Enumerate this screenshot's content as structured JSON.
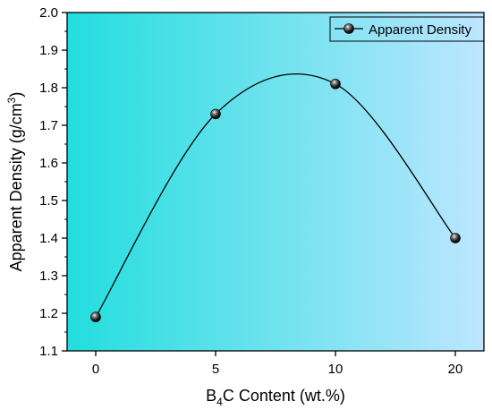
{
  "chart_data": {
    "type": "line",
    "title": "",
    "xlabel": {
      "main": "B",
      "sub": "4",
      "rest": "C Content (wt.%)"
    },
    "ylabel": {
      "main": "Apparent Density (g/cm",
      "sup": "3",
      "end": ")"
    },
    "categories": [
      "0",
      "5",
      "10",
      "20"
    ],
    "ylim": [
      1.1,
      2.0
    ],
    "yticks": [
      "1.1",
      "1.2",
      "1.3",
      "1.4",
      "1.5",
      "1.6",
      "1.7",
      "1.8",
      "1.9",
      "2.0"
    ],
    "series": [
      {
        "name": "Apparent Density",
        "values": [
          1.19,
          1.73,
          1.81,
          1.4
        ],
        "marker": "sphere",
        "smooth": true
      }
    ],
    "legend_position": "top-right",
    "background": {
      "left": "#22dede",
      "right": "#bde6ff"
    },
    "grid": false
  }
}
